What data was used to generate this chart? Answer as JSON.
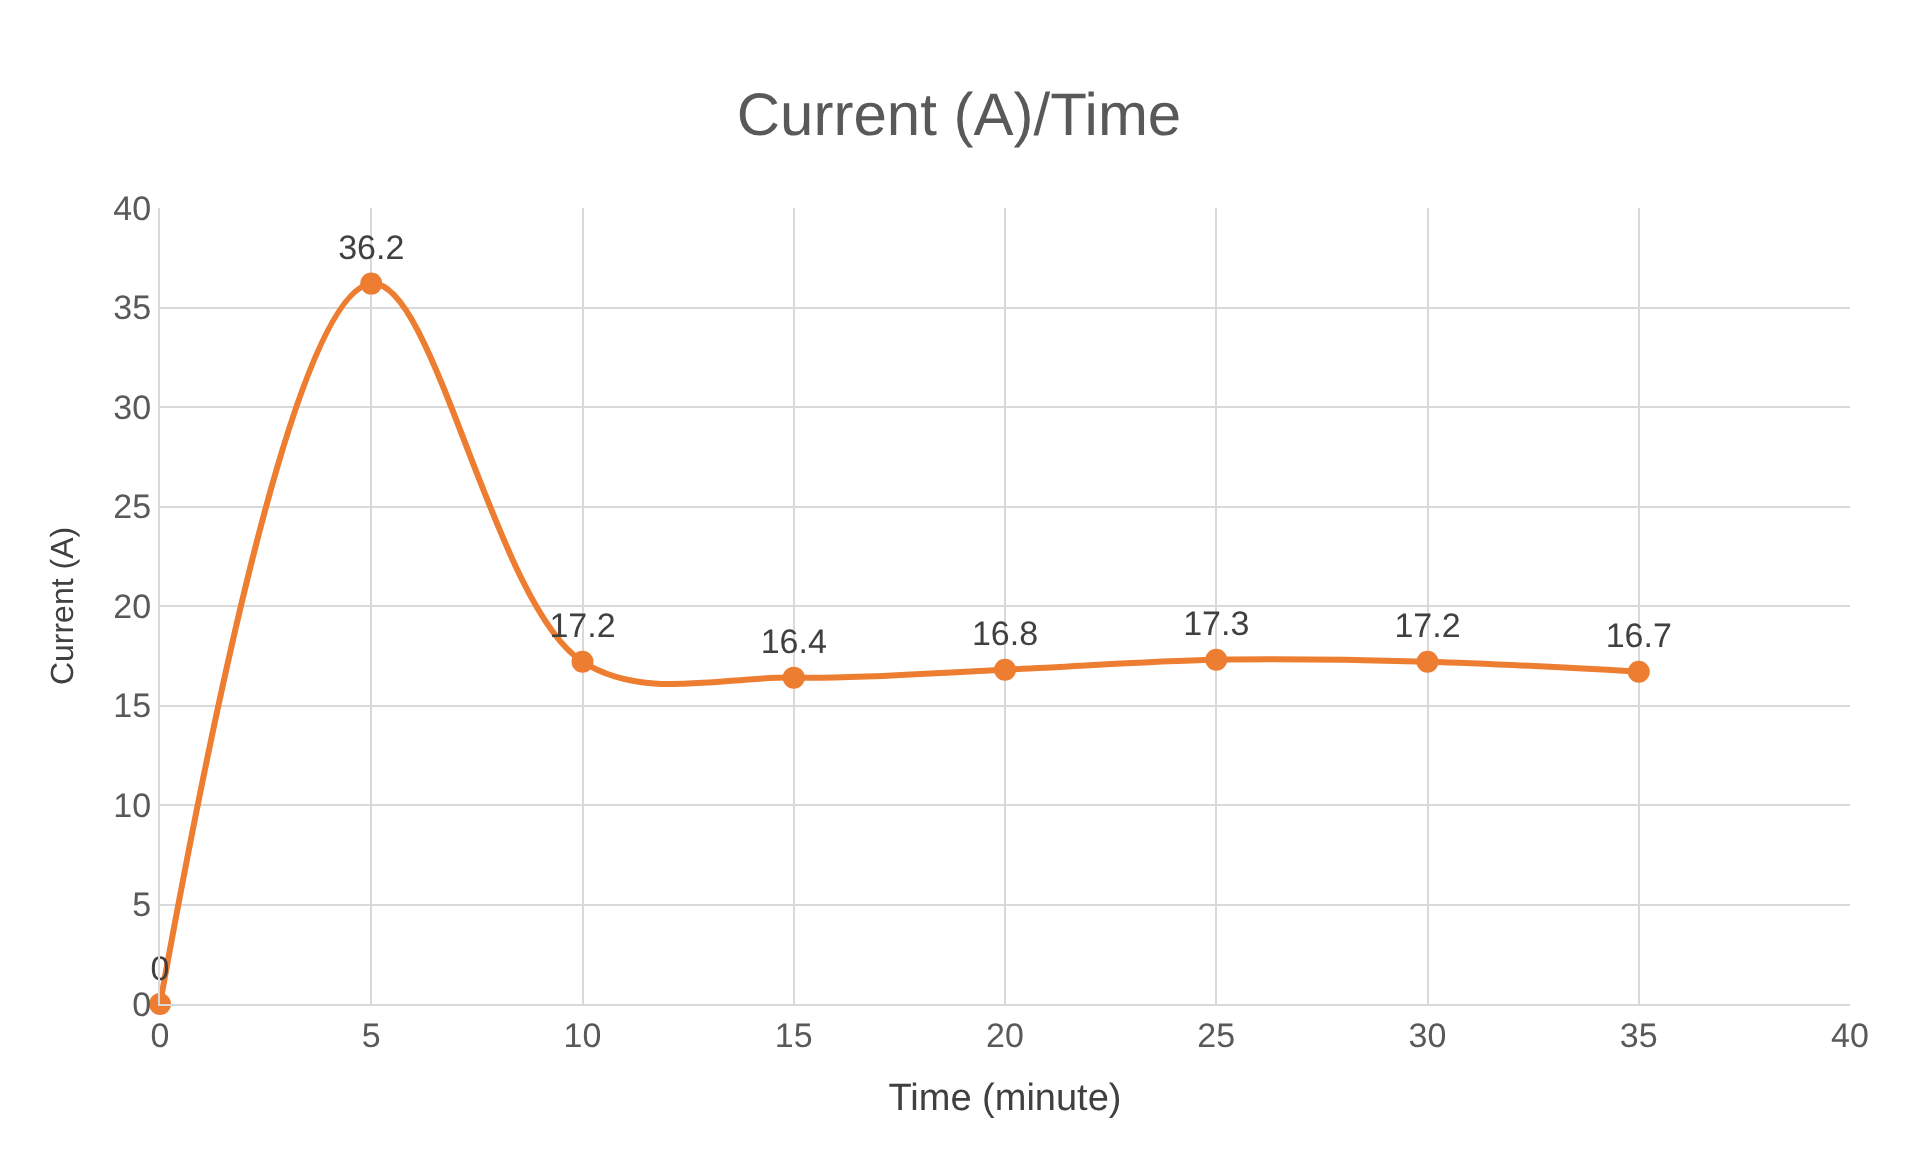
{
  "chart_data": {
    "type": "line",
    "title": "Current (A)/Time",
    "xlabel": "Time (minute)",
    "ylabel": "Current (A)",
    "x": [
      0,
      5,
      10,
      15,
      20,
      25,
      30,
      35
    ],
    "series": [
      {
        "color": "#ed7d31",
        "values": [
          0,
          36.2,
          17.2,
          16.4,
          16.8,
          17.3,
          17.2,
          16.7
        ]
      }
    ],
    "xlim": [
      0,
      40
    ],
    "xticks": [
      0,
      5,
      10,
      15,
      20,
      25,
      30,
      35,
      40
    ],
    "ylim": [
      0,
      40
    ],
    "yticks": [
      0,
      5,
      10,
      15,
      20,
      25,
      30,
      35,
      40
    ],
    "grid": true,
    "marker": "circle",
    "line_style": "solid",
    "data_labels": true,
    "legend": false
  }
}
